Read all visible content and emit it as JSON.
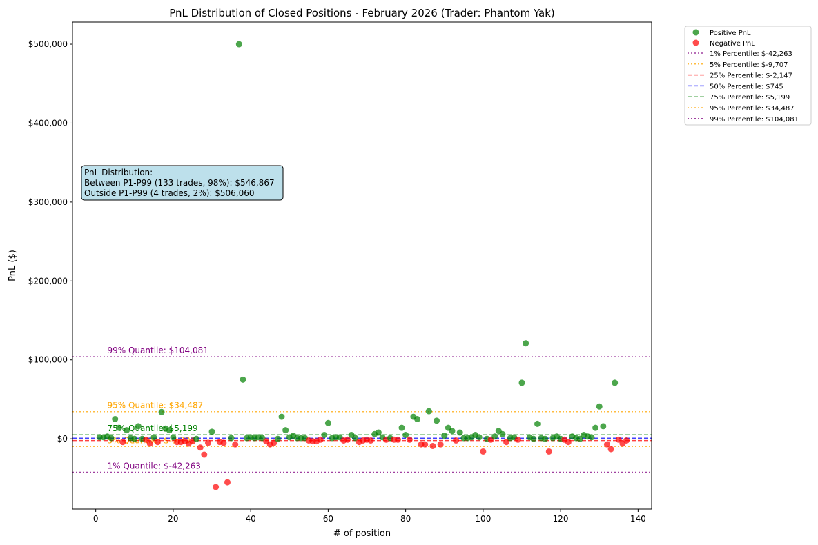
{
  "chart_data": {
    "type": "scatter",
    "title": "PnL Distribution of Closed Positions - February 2026 (Trader: Phantom Yak)",
    "xlabel": "# of position",
    "ylabel": "PnL ($)",
    "xlim": [
      -6,
      143.5
    ],
    "ylim": [
      -89000,
      528000
    ],
    "xticks": [
      0,
      20,
      40,
      60,
      80,
      100,
      120,
      140
    ],
    "yticks": [
      {
        "v": 0,
        "label": "$0"
      },
      {
        "v": 100000,
        "label": "$100,000"
      },
      {
        "v": 200000,
        "label": "$200,000"
      },
      {
        "v": 300000,
        "label": "$300,000"
      },
      {
        "v": 400000,
        "label": "$400,000"
      },
      {
        "v": 500000,
        "label": "$500,000"
      }
    ],
    "colors": {
      "positive": "#008000",
      "negative": "#ff0000"
    },
    "values_k": [
      2,
      2,
      3,
      1,
      25,
      14,
      -4,
      11,
      1,
      0,
      16,
      0,
      -1,
      -6,
      2,
      -4,
      34,
      13,
      11,
      2,
      -4,
      -4,
      -3,
      -6,
      -3,
      0,
      -11,
      -20,
      -5,
      9,
      -61,
      -4,
      -5,
      -55,
      1,
      -7,
      500,
      75,
      1,
      2,
      1,
      2,
      1,
      -3,
      -7,
      -5,
      0,
      28,
      11,
      2,
      4,
      1,
      1,
      1,
      -2,
      -3,
      -3,
      -1,
      5,
      20,
      1,
      2,
      2,
      -2,
      -1,
      5,
      1,
      -4,
      -2,
      -1,
      -2,
      6,
      8,
      2,
      -1,
      1,
      -1,
      -1,
      14,
      5,
      -1,
      28,
      25,
      -7,
      -7,
      35,
      -9,
      23,
      -7,
      4,
      14,
      10,
      -2,
      8,
      1,
      1,
      2,
      5,
      2,
      -16,
      0,
      -1,
      3,
      10,
      6,
      -4,
      1,
      2,
      -1,
      71,
      121,
      2,
      0,
      19,
      1,
      0,
      -16,
      1,
      3,
      0,
      -1,
      -4,
      3,
      1,
      0,
      5,
      3,
      2,
      14,
      41,
      16,
      -7,
      -13,
      71,
      -1,
      -6,
      -2
    ],
    "percentiles": [
      {
        "name": "1% Percentile: $-42,263",
        "value": -42263,
        "color": "#800080",
        "dash": "dot",
        "label": "1% Quantile: $-42,263"
      },
      {
        "name": "5% Percentile: $-9,707",
        "value": -9707,
        "color": "#ffa500",
        "dash": "dot",
        "label": "5% Quantile: $-9,707"
      },
      {
        "name": "25% Percentile: $-2,147",
        "value": -2147,
        "color": "#ff0000",
        "dash": "dash",
        "label": ""
      },
      {
        "name": "50% Percentile: $745",
        "value": 745,
        "color": "#0000ff",
        "dash": "dash",
        "label": ""
      },
      {
        "name": "75% Percentile: $5,199",
        "value": 5199,
        "color": "#008000",
        "dash": "dash",
        "label": "75% Quantile: $5,199"
      },
      {
        "name": "95% Percentile: $34,487",
        "value": 34487,
        "color": "#ffa500",
        "dash": "dot",
        "label": "95% Quantile: $34,487"
      },
      {
        "name": "99% Percentile: $104,081",
        "value": 104081,
        "color": "#800080",
        "dash": "dot",
        "label": "99% Quantile: $104,081"
      }
    ],
    "legend": {
      "placement": "outside-top-right",
      "positive": "Positive PnL",
      "negative": "Negative PnL"
    },
    "annotation": [
      "PnL Distribution:",
      "Between P1-P99 (133 trades, 98%): $546,867",
      "Outside P1-P99 (4 trades, 2%): $506,060"
    ]
  }
}
